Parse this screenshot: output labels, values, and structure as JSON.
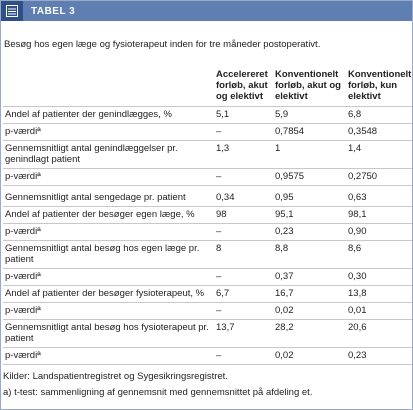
{
  "header": {
    "title": "TABEL 3"
  },
  "subtitle": "Besøg hos egen læge og fysioterapeut inden for tre måneder postoperativt.",
  "table": {
    "columns": [
      "",
      "Accelereret forløb, akut og elektivt",
      "Konventionelt forløb, akut og elektivt",
      "Konventionelt forløb, kun elektivt"
    ],
    "rows": [
      [
        "Andel af patienter der genindlægges, %",
        "5,1",
        "5,9",
        "6,8"
      ],
      [
        "p-værdiª",
        "–",
        "0,7854",
        "0,3548"
      ],
      [
        "Gennemsnitligt antal genindlæggelser pr. genindlagt patient",
        "1,3",
        "1",
        "1,4"
      ],
      [
        "p-værdiª",
        "–",
        "0,9575",
        "0,2750"
      ],
      [
        "Gennemsnitligt antal sengedage pr. patient",
        "0,34",
        "0,95",
        "0,63"
      ],
      [
        "Andel af patienter der besøger egen læge, %",
        "98",
        "95,1",
        "98,1"
      ],
      [
        "p-værdiª",
        "–",
        "0,23",
        "0,90"
      ],
      [
        "Gennemsnitligt antal besøg hos egen læge pr. patient",
        "8",
        "8,8",
        "8,6"
      ],
      [
        "p-værdiª",
        "–",
        "0,37",
        "0,30"
      ],
      [
        "Andel af patienter der besøger fysioterapeut, %",
        "6,7",
        "16,7",
        "13,8"
      ],
      [
        "p-værdiª",
        "–",
        "0,02",
        "0,01"
      ],
      [
        "Gennemsnitligt antal besøg hos fysioterapeut pr. patient",
        "13,7",
        "28,2",
        "20,6"
      ],
      [
        "p-værdiª",
        "–",
        "0,02",
        "0,23"
      ]
    ]
  },
  "notes": [
    "Kilder: Landspatientregistret og Sygesikringsregistret.",
    "a) t-test: sammenligning af gennemsnit med gennemsnittet på afdeling et."
  ]
}
